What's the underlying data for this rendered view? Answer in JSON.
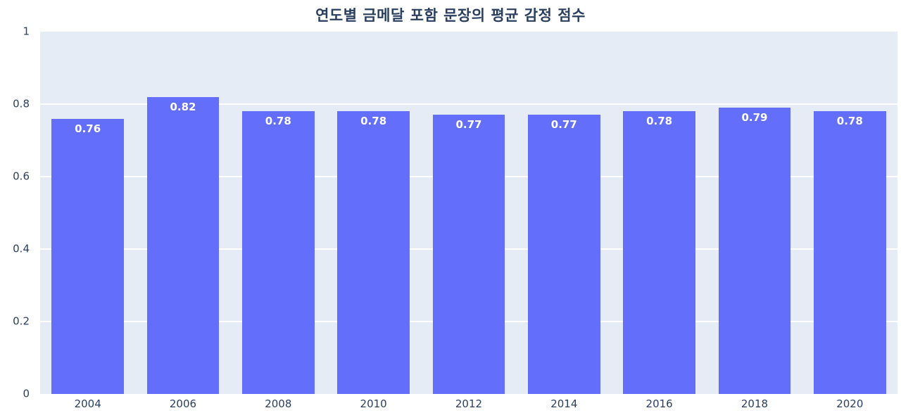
{
  "chart_data": {
    "type": "bar",
    "title": "연도별 금메달 포함 문장의 평균 감정 점수",
    "categories": [
      "2004",
      "2006",
      "2008",
      "2010",
      "2012",
      "2014",
      "2016",
      "2018",
      "2020"
    ],
    "values": [
      0.76,
      0.82,
      0.78,
      0.78,
      0.77,
      0.77,
      0.78,
      0.79,
      0.78
    ],
    "bar_labels": [
      "0.76",
      "0.82",
      "0.78",
      "0.78",
      "0.77",
      "0.77",
      "0.78",
      "0.79",
      "0.78"
    ],
    "xlabel": "",
    "ylabel": "",
    "ylim": [
      0,
      1
    ],
    "yticks": [
      0,
      0.2,
      0.4,
      0.6,
      0.8,
      1
    ],
    "ytick_labels": [
      "0",
      "0.2",
      "0.4",
      "0.6",
      "0.8",
      "1"
    ],
    "grid": true,
    "legend": "none",
    "colors": {
      "bar": "#636efa",
      "plot_background": "#e5ecf6",
      "gridline": "#ffffff",
      "bar_label_text": "#ffffff",
      "axis_text": "#2a3f5f",
      "title_text": "#2a3f5f"
    }
  }
}
